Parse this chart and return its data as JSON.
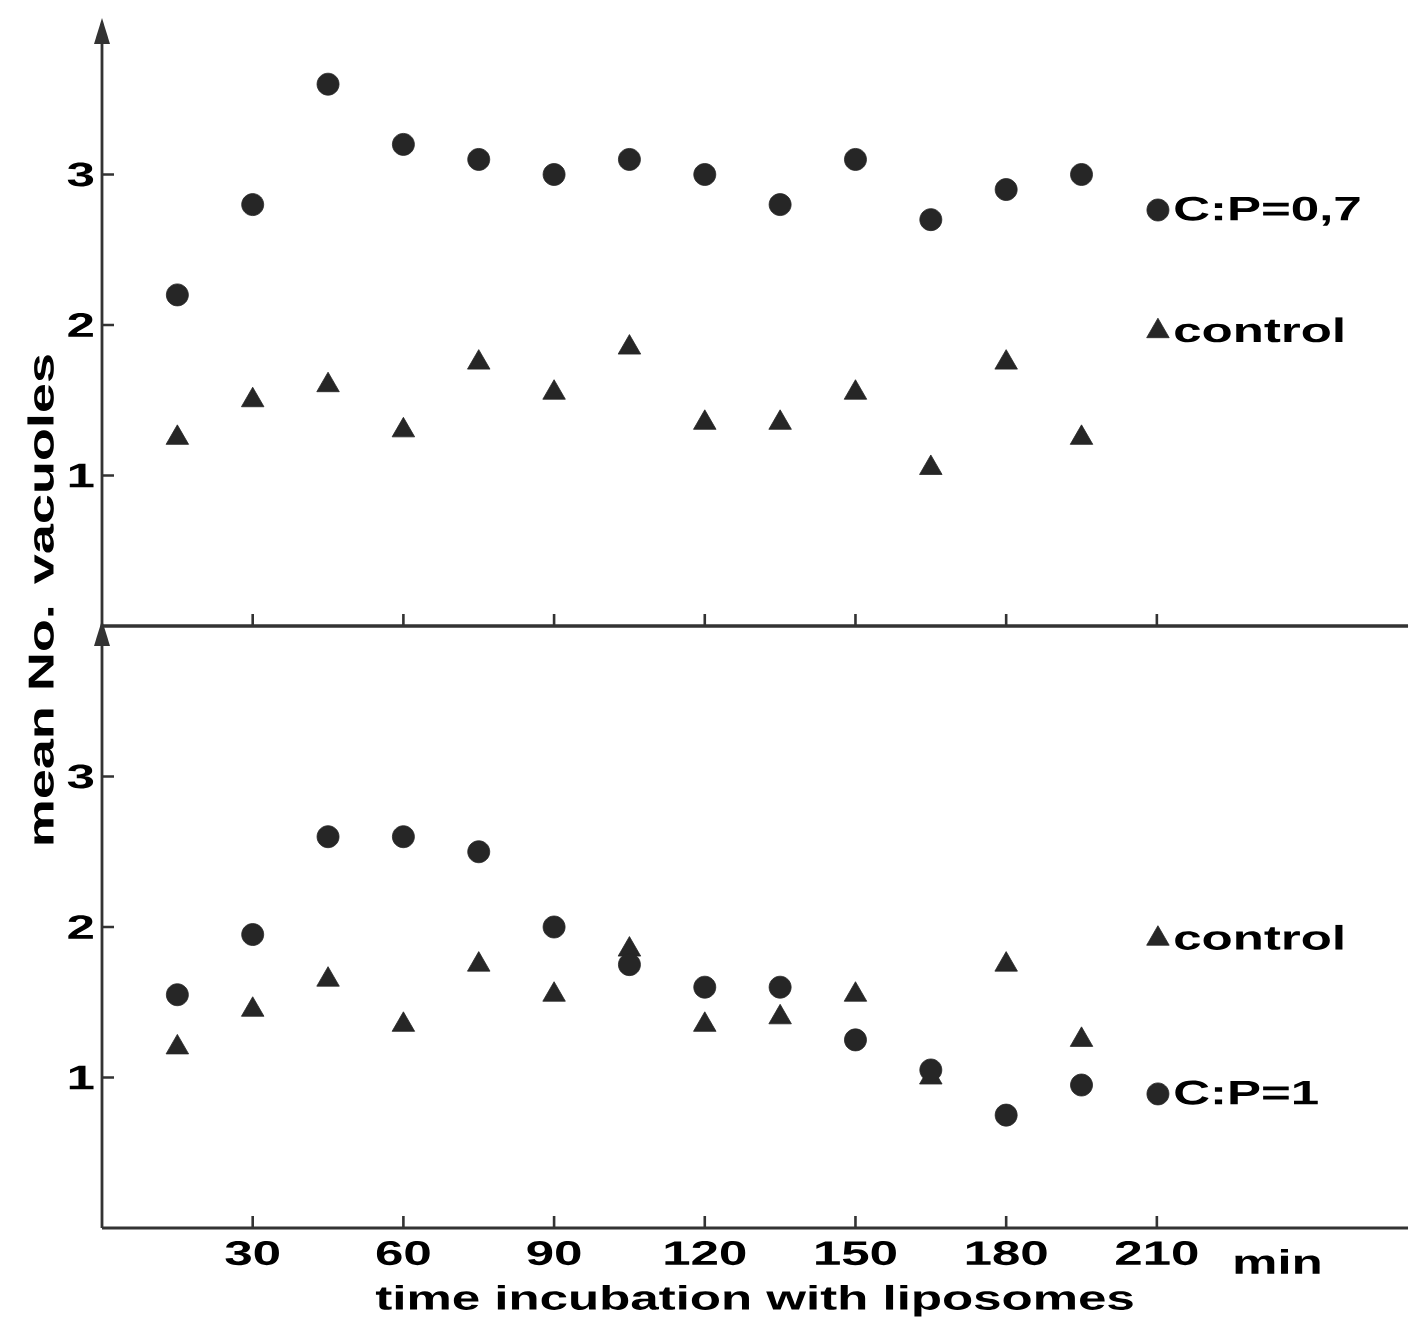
{
  "chart_data": [
    {
      "type": "scatter",
      "ylabel": "mean No. vacuoles",
      "x": [
        15,
        30,
        45,
        60,
        75,
        90,
        105,
        120,
        135,
        150,
        165,
        180,
        195
      ],
      "series": [
        {
          "name": "C:P=0,7",
          "color": "#262626",
          "marker": "circle",
          "values": [
            2.2,
            2.8,
            3.6,
            3.2,
            3.1,
            3.0,
            3.1,
            3.0,
            2.8,
            3.1,
            2.7,
            2.9,
            3.0
          ]
        },
        {
          "name": "control",
          "color": "#262626",
          "marker": "triangle",
          "values": [
            1.25,
            1.5,
            1.6,
            1.3,
            1.75,
            1.55,
            1.85,
            1.35,
            1.35,
            1.55,
            1.05,
            1.75,
            1.25
          ]
        }
      ],
      "xlim": [
        0,
        260
      ],
      "ylim": [
        0,
        4
      ],
      "xticks": [
        30,
        60,
        90,
        120,
        150,
        180,
        210
      ],
      "yticks": [
        1,
        2,
        3
      ],
      "tick_labels": "y",
      "legend": "right"
    },
    {
      "type": "scatter",
      "xlabel": "time incubation with liposomes",
      "x": [
        15,
        30,
        45,
        60,
        75,
        90,
        105,
        120,
        135,
        150,
        165,
        180,
        195
      ],
      "series": [
        {
          "name": "control",
          "color": "#262626",
          "marker": "triangle",
          "values": [
            1.2,
            1.45,
            1.65,
            1.35,
            1.75,
            1.55,
            1.85,
            1.35,
            1.4,
            1.55,
            1.0,
            1.75,
            1.25
          ]
        },
        {
          "name": "C:P=1",
          "color": "#262626",
          "marker": "circle",
          "values": [
            1.55,
            1.95,
            2.6,
            2.6,
            2.5,
            2.0,
            1.75,
            1.6,
            1.6,
            1.25,
            1.05,
            0.75,
            0.95
          ]
        }
      ],
      "xlim": [
        0,
        260
      ],
      "ylim": [
        0,
        4
      ],
      "xticks": [
        30,
        60,
        90,
        120,
        150,
        180,
        210
      ],
      "yticks": [
        1,
        2,
        3
      ],
      "legend": "right",
      "annotations": [
        "min"
      ]
    }
  ]
}
